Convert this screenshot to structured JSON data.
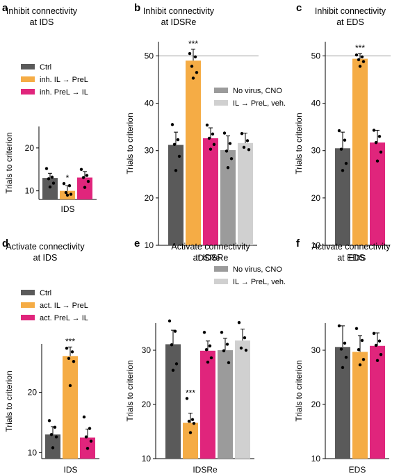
{
  "colors": {
    "ctrl": "#5a5a5a",
    "il_to_prel": "#f5ac45",
    "prel_to_il": "#e0257c",
    "no_virus": "#9b9b9b",
    "veh": "#d0d0d0"
  },
  "chart_data": [
    {
      "panel": "a",
      "title": [
        "Inhibit connectivity",
        "at IDS"
      ],
      "type": "bar",
      "xlabel": "IDS",
      "ylabel": "Trials to criterion",
      "ylim": [
        8,
        25
      ],
      "yticks": [
        10,
        20
      ],
      "legend": {
        "placement": "top",
        "entries": [
          {
            "label": "Ctrl",
            "color": "ctrl"
          },
          {
            "label": "inh. IL → PreL",
            "color": "il_to_prel"
          },
          {
            "label": "inh. PreL → IL",
            "color": "prel_to_il"
          }
        ]
      },
      "reference_line": null,
      "bars": [
        {
          "color": "ctrl",
          "mean": 13.0,
          "err": 1.1,
          "sig": "",
          "points": [
            15.2,
            13.2,
            12.8,
            11.8,
            10.9
          ]
        },
        {
          "color": "il_to_prel",
          "mean": 10.0,
          "err": 1.2,
          "sig": "*",
          "points": [
            11.7,
            11.2,
            9.6,
            9.2,
            9.0
          ]
        },
        {
          "color": "prel_to_il",
          "mean": 13.1,
          "err": 1.4,
          "sig": "",
          "points": [
            15.0,
            13.6,
            13.1,
            12.2,
            10.8
          ]
        }
      ]
    },
    {
      "panel": "b",
      "title": [
        "Inhibit connectivity",
        "at IDSRe"
      ],
      "type": "bar",
      "xlabel": "IDSRe",
      "ylabel": "Trials to criterion",
      "ylim": [
        10,
        53
      ],
      "yticks": [
        10,
        20,
        30,
        40,
        50
      ],
      "legend": {
        "placement": "right",
        "entries": [
          {
            "label": "No virus, CNO",
            "color": "no_virus"
          },
          {
            "label": "IL → PreL, veh.",
            "color": "veh"
          }
        ]
      },
      "reference_line": 50,
      "bars": [
        {
          "color": "ctrl",
          "mean": 31.2,
          "err": 2.7,
          "sig": "",
          "points": [
            35.5,
            32.3,
            31.3,
            28.8,
            25.8
          ]
        },
        {
          "color": "il_to_prel",
          "mean": 49.0,
          "err": 2.4,
          "sig": "***",
          "points": [
            50.5,
            49.8,
            47.8,
            46.5,
            45.3
          ]
        },
        {
          "color": "prel_to_il",
          "mean": 32.6,
          "err": 2.2,
          "sig": "",
          "points": [
            35.4,
            33.5,
            32.6,
            31.3,
            30.3
          ]
        },
        {
          "color": "no_virus",
          "mean": 30.1,
          "err": 3.0,
          "sig": "",
          "points": [
            33.7,
            31.5,
            29.9,
            28.3,
            26.4
          ]
        },
        {
          "color": "veh",
          "mean": 31.6,
          "err": 2.1,
          "sig": "",
          "points": [
            33.6,
            32.1,
            30.7,
            30.2
          ]
        }
      ]
    },
    {
      "panel": "c",
      "title": [
        "Inhibit connectivity",
        "at EDS"
      ],
      "type": "bar",
      "xlabel": "EDS",
      "ylabel": "Trials to criterion",
      "ylim": [
        10,
        53
      ],
      "yticks": [
        10,
        20,
        30,
        40,
        50
      ],
      "legend": null,
      "reference_line": 50,
      "bars": [
        {
          "color": "ctrl",
          "mean": 30.5,
          "err": 3.4,
          "sig": "",
          "points": [
            34.2,
            32.2,
            30.3,
            27.3,
            25.8
          ]
        },
        {
          "color": "il_to_prel",
          "mean": 49.4,
          "err": 1.1,
          "sig": "***",
          "points": [
            50.2,
            49.8,
            49.2,
            48.8,
            47.8
          ]
        },
        {
          "color": "prel_to_il",
          "mean": 31.7,
          "err": 2.6,
          "sig": "",
          "points": [
            34.3,
            33.0,
            31.7,
            29.7,
            27.8
          ]
        }
      ]
    },
    {
      "panel": "d",
      "title": [
        "Activate connectivity",
        "at IDS"
      ],
      "type": "bar",
      "xlabel": "IDS",
      "ylabel": "Trials to criterion",
      "ylim": [
        9,
        28
      ],
      "yticks": [
        10,
        20
      ],
      "legend": {
        "placement": "top",
        "entries": [
          {
            "label": "Ctrl",
            "color": "ctrl"
          },
          {
            "label": "act. IL → PreL",
            "color": "il_to_prel"
          },
          {
            "label": "act. PreL → IL",
            "color": "prel_to_il"
          }
        ]
      },
      "reference_line": null,
      "bars": [
        {
          "color": "ctrl",
          "mean": 13.0,
          "err": 1.3,
          "sig": "",
          "points": [
            15.3,
            14.2,
            13.0,
            12.6,
            10.8
          ]
        },
        {
          "color": "il_to_prel",
          "mean": 26.0,
          "err": 1.5,
          "sig": "***",
          "points": [
            27.3,
            26.7,
            25.6,
            25.1,
            21.1
          ]
        },
        {
          "color": "prel_to_il",
          "mean": 12.5,
          "err": 1.4,
          "sig": "",
          "points": [
            15.9,
            14.0,
            12.6,
            11.9,
            10.7
          ]
        }
      ]
    },
    {
      "panel": "e",
      "title": [
        "Activate connectivity",
        "at IDSRe"
      ],
      "type": "bar",
      "xlabel": "IDSRe",
      "ylabel": "Trials to criterion",
      "ylim": [
        10,
        35
      ],
      "yticks": [
        10,
        20,
        30
      ],
      "legend": {
        "placement": "top-right",
        "entries": [
          {
            "label": "No virus, CNO",
            "color": "no_virus"
          },
          {
            "label": "IL → PreL, veh.",
            "color": "veh"
          }
        ]
      },
      "reference_line": null,
      "bars": [
        {
          "color": "ctrl",
          "mean": 31.1,
          "err": 2.6,
          "sig": "",
          "points": [
            35.4,
            33.5,
            31.0,
            27.5,
            26.3
          ]
        },
        {
          "color": "il_to_prel",
          "mean": 16.6,
          "err": 1.8,
          "sig": "***",
          "points": [
            21.1,
            17.2,
            16.9,
            16.5,
            14.8
          ]
        },
        {
          "color": "prel_to_il",
          "mean": 29.9,
          "err": 1.8,
          "sig": "",
          "points": [
            33.3,
            30.8,
            30.1,
            28.6,
            27.8
          ]
        },
        {
          "color": "no_virus",
          "mean": 30.0,
          "err": 2.2,
          "sig": "",
          "points": [
            33.3,
            31.1,
            29.9,
            27.7
          ]
        },
        {
          "color": "veh",
          "mean": 31.8,
          "err": 2.1,
          "sig": "",
          "points": [
            35.1,
            32.3,
            30.4,
            30.0
          ]
        }
      ]
    },
    {
      "panel": "f",
      "title": [
        "Activate connectivity",
        "at EDS"
      ],
      "type": "bar",
      "xlabel": "EDS",
      "ylabel": "Trials to criterion",
      "ylim": [
        10,
        35
      ],
      "yticks": [
        10,
        20,
        30
      ],
      "legend": null,
      "reference_line": null,
      "bars": [
        {
          "color": "ctrl",
          "mean": 30.6,
          "err": 3.9,
          "sig": "",
          "points": [
            34.5,
            31.3,
            30.2,
            28.7,
            26.8
          ]
        },
        {
          "color": "il_to_prel",
          "mean": 29.7,
          "err": 3.0,
          "sig": "",
          "points": [
            34.0,
            31.8,
            30.1,
            28.3,
            27.3
          ]
        },
        {
          "color": "prel_to_il",
          "mean": 30.8,
          "err": 2.4,
          "sig": "",
          "points": [
            33.1,
            31.7,
            30.9,
            29.2,
            28.1
          ]
        }
      ]
    }
  ]
}
